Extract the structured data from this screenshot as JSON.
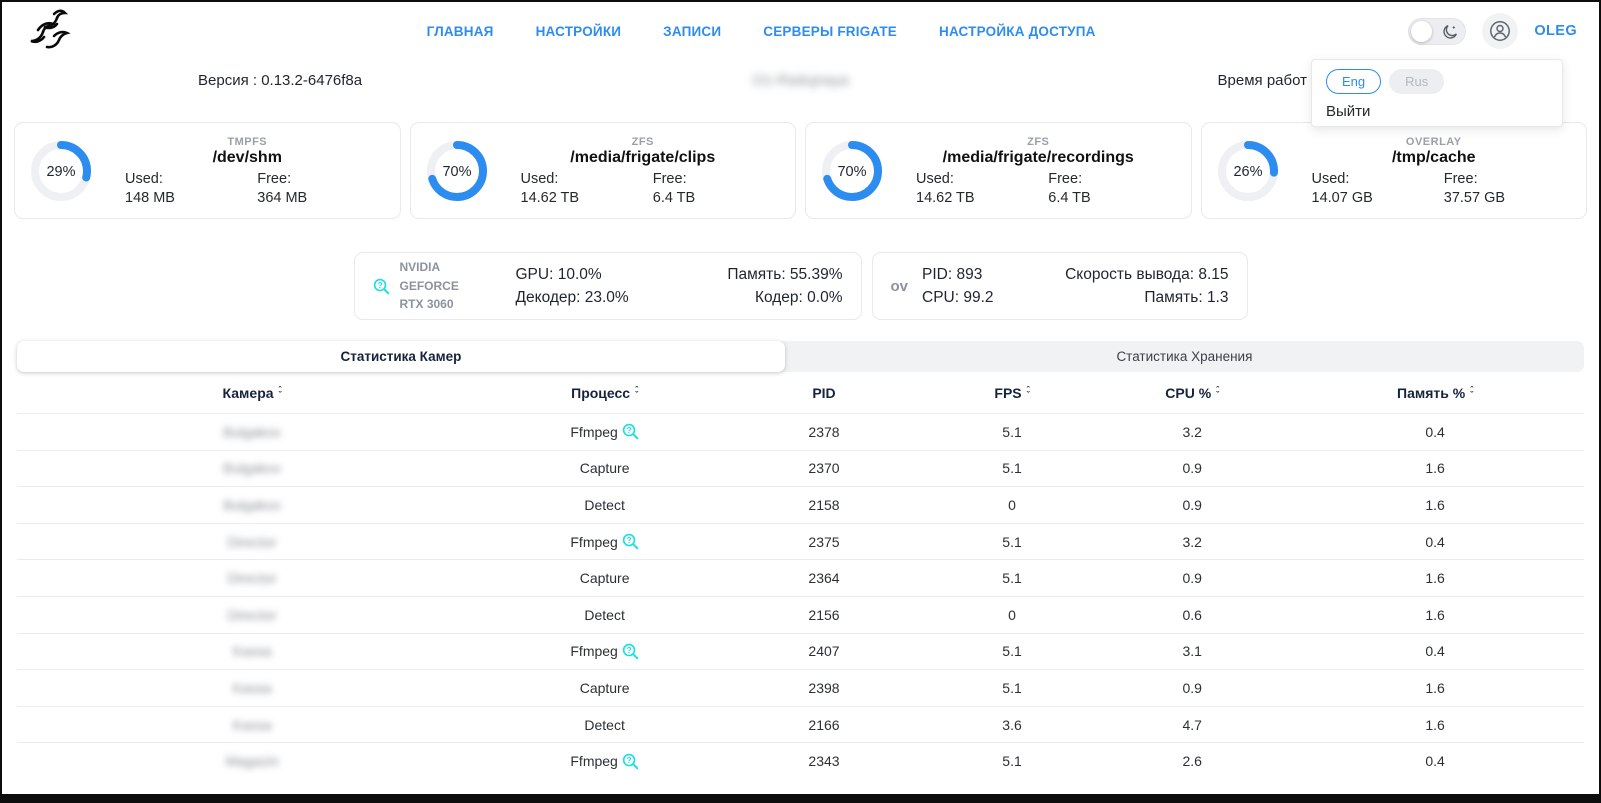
{
  "header": {
    "nav_items": [
      {
        "label": "ГЛАВНАЯ"
      },
      {
        "label": "НАСТРОЙКИ"
      },
      {
        "label": "ЗАПИСИ"
      },
      {
        "label": "СЕРВЕРЫ FRIGATE"
      },
      {
        "label": "НАСТРОЙКА ДОСТУПА"
      }
    ],
    "username": "OLEG"
  },
  "user_menu": {
    "lang_options": [
      {
        "label": "Eng",
        "active": true
      },
      {
        "label": "Rus",
        "active": false
      }
    ],
    "logout_label": "Выйти"
  },
  "info_bar": {
    "version": "Версия : 0.13.2-6476f8a",
    "hostname_blurred": "O1-Radujnaya",
    "uptime_label_visible": "Время работ"
  },
  "storage_labels": {
    "used": "Used:",
    "free": "Free:"
  },
  "storage_cards": [
    {
      "fs_type": "TMPFS",
      "mount": "/dev/shm",
      "percent": 29,
      "used": "148 MB",
      "free": "364 MB"
    },
    {
      "fs_type": "ZFS",
      "mount": "/media/frigate/clips",
      "percent": 70,
      "used": "14.62 TB",
      "free": "6.4 TB"
    },
    {
      "fs_type": "ZFS",
      "mount": "/media/frigate/recordings",
      "percent": 70,
      "used": "14.62 TB",
      "free": "6.4 TB"
    },
    {
      "fs_type": "OVERLAY",
      "mount": "/tmp/cache",
      "percent": 26,
      "used": "14.07 GB",
      "free": "37.57 GB"
    }
  ],
  "gpu_card": {
    "name_line1": "NVIDIA GEFORCE",
    "name_line2": "RTX 3060",
    "gpu": "GPU: 10.0%",
    "decoder": "Декодер: 23.0%",
    "memory": "Память: 55.39%",
    "encoder": "Кодер: 0.0%"
  },
  "ov_card": {
    "label": "ov",
    "pid": "PID: 893",
    "cpu": "CPU: 99.2",
    "output_speed": "Скорость вывода: 8.15",
    "memory": "Память: 1.3"
  },
  "tabs": {
    "cameras": "Статистика Камер",
    "storage": "Статистика Хранения"
  },
  "camera_table": {
    "columns": [
      {
        "label": "Камера",
        "sortable": true
      },
      {
        "label": "Процесс",
        "sortable": true
      },
      {
        "label": "PID",
        "sortable": false
      },
      {
        "label": "FPS",
        "sortable": true
      },
      {
        "label": "CPU %",
        "sortable": true
      },
      {
        "label": "Память %",
        "sortable": true
      }
    ],
    "rows": [
      {
        "camera_blurred": "Bulgakov",
        "process": "Ffmpeg",
        "info_icon": true,
        "pid": "2378",
        "fps": "5.1",
        "cpu": "3.2",
        "mem": "0.4"
      },
      {
        "camera_blurred": "Bulgakov",
        "process": "Capture",
        "info_icon": false,
        "pid": "2370",
        "fps": "5.1",
        "cpu": "0.9",
        "mem": "1.6"
      },
      {
        "camera_blurred": "Bulgakov",
        "process": "Detect",
        "info_icon": false,
        "pid": "2158",
        "fps": "0",
        "cpu": "0.9",
        "mem": "1.6"
      },
      {
        "camera_blurred": "Director",
        "process": "Ffmpeg",
        "info_icon": true,
        "pid": "2375",
        "fps": "5.1",
        "cpu": "3.2",
        "mem": "0.4"
      },
      {
        "camera_blurred": "Director",
        "process": "Capture",
        "info_icon": false,
        "pid": "2364",
        "fps": "5.1",
        "cpu": "0.9",
        "mem": "1.6"
      },
      {
        "camera_blurred": "Director",
        "process": "Detect",
        "info_icon": false,
        "pid": "2156",
        "fps": "0",
        "cpu": "0.6",
        "mem": "1.6"
      },
      {
        "camera_blurred": "Kassa",
        "process": "Ffmpeg",
        "info_icon": true,
        "pid": "2407",
        "fps": "5.1",
        "cpu": "3.1",
        "mem": "0.4"
      },
      {
        "camera_blurred": "Kassa",
        "process": "Capture",
        "info_icon": false,
        "pid": "2398",
        "fps": "5.1",
        "cpu": "0.9",
        "mem": "1.6"
      },
      {
        "camera_blurred": "Kassa",
        "process": "Detect",
        "info_icon": false,
        "pid": "2166",
        "fps": "3.6",
        "cpu": "4.7",
        "mem": "1.6"
      },
      {
        "camera_blurred": "Magazin",
        "process": "Ffmpeg",
        "info_icon": true,
        "pid": "2343",
        "fps": "5.1",
        "cpu": "2.6",
        "mem": "0.4"
      }
    ]
  },
  "colors": {
    "accent_blue": "#2d8cf0",
    "icon_cyan": "#15dfe2",
    "donut_track": "#eef0f4",
    "text_dark": "#1f2430",
    "muted_gray": "#8d939e"
  }
}
